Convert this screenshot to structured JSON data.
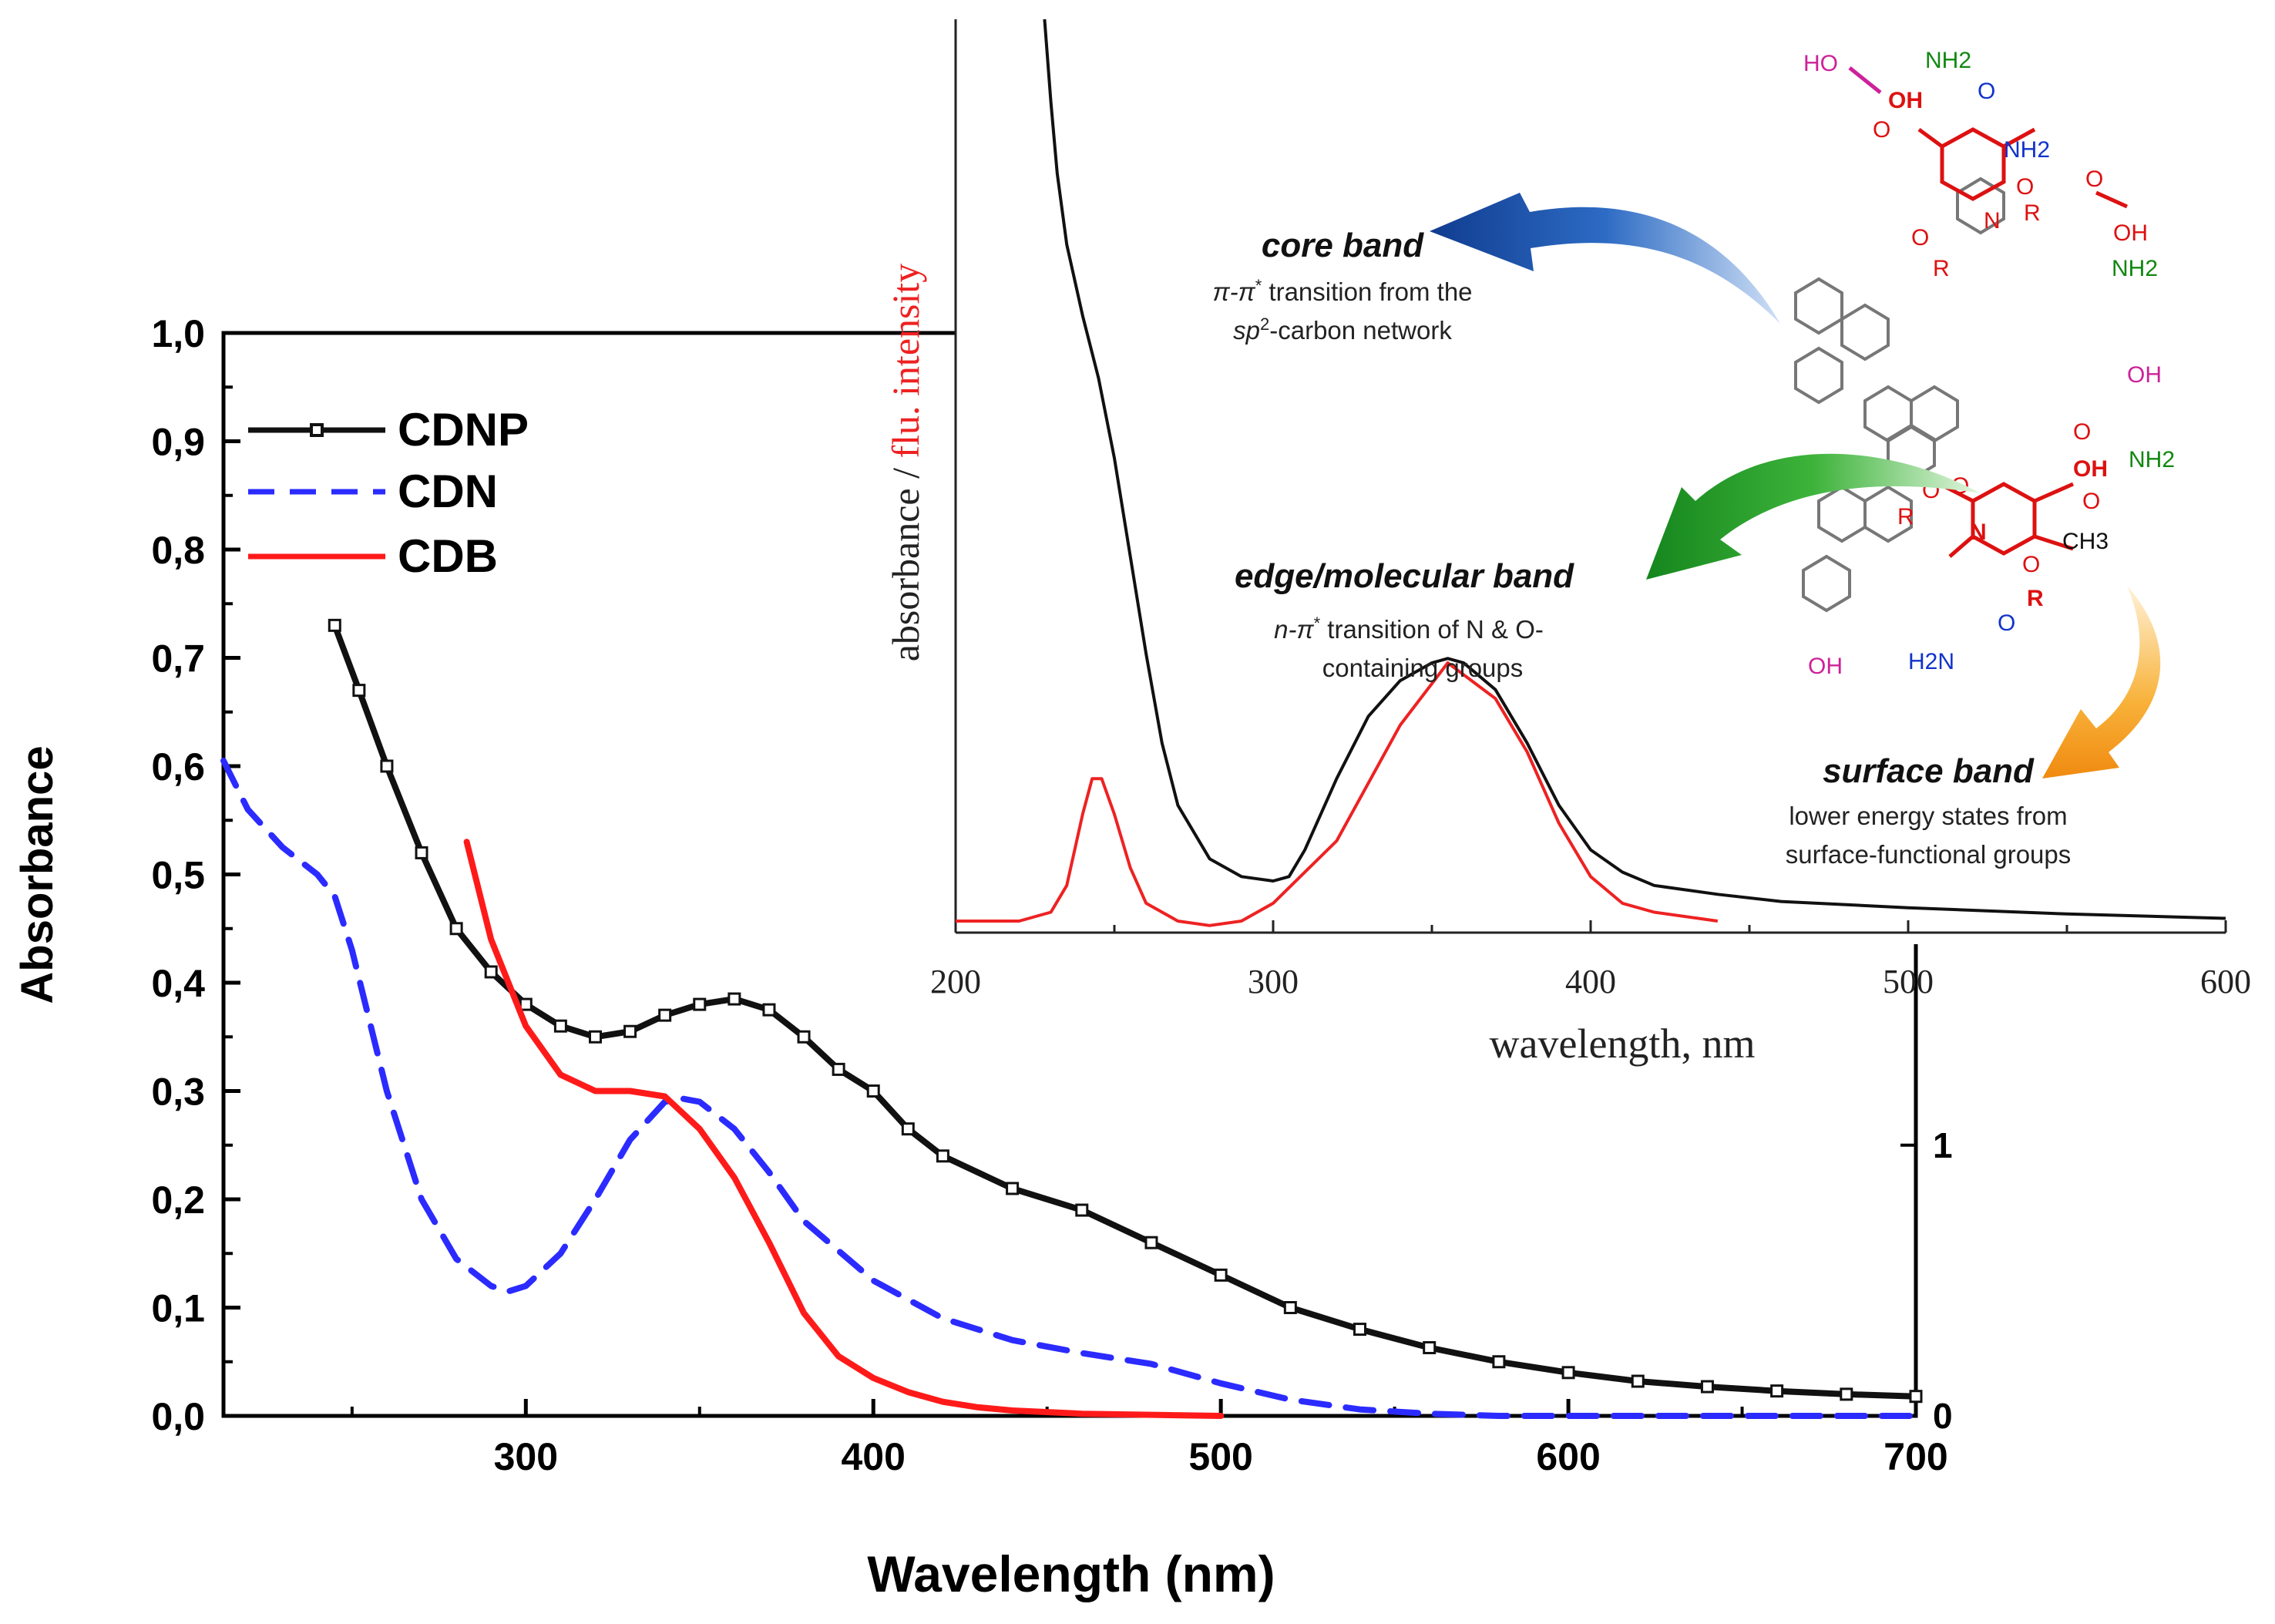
{
  "colors": {
    "cdnp": "#111111",
    "cdn": "#2b2bff",
    "cdb": "#ff1a1a",
    "inset_abs": "#111111",
    "inset_flu": "#ee2222",
    "core_arrow": "#1f4fa8",
    "edge_arrow": "#1f8f2a",
    "surface_arrow": "#f5a020",
    "glow": "#44dd33"
  },
  "chart_data": [
    {
      "type": "line",
      "title": "",
      "xlabel": "Wavelength (nm)",
      "ylabel": "Absorbance",
      "xlim": [
        213,
        700
      ],
      "ylim": [
        0.0,
        1.0
      ],
      "x_ticks": [
        "300",
        "400",
        "500",
        "600",
        "700"
      ],
      "x_tick_values": [
        300,
        400,
        500,
        600,
        700
      ],
      "y_ticks": [
        "0,0",
        "0,1",
        "0,2",
        "0,3",
        "0,4",
        "0,5",
        "0,6",
        "0,7",
        "0,8",
        "0,9",
        "1,0"
      ],
      "y_tick_values": [
        0.0,
        0.1,
        0.2,
        0.3,
        0.4,
        0.5,
        0.6,
        0.7,
        0.8,
        0.9,
        1.0
      ],
      "right_axis_ticks": [
        "0",
        "1"
      ],
      "right_axis_tick_values": [
        0.0,
        0.25
      ],
      "legend": [
        "CDNP",
        "CDN",
        "CDB"
      ],
      "legend_position": "top-left",
      "series": [
        {
          "name": "CDNP",
          "style": "solid-with-square-markers",
          "x": [
            245,
            252,
            260,
            270,
            280,
            290,
            300,
            310,
            320,
            330,
            340,
            350,
            360,
            370,
            380,
            390,
            400,
            410,
            420,
            440,
            460,
            480,
            500,
            520,
            540,
            560,
            580,
            600,
            620,
            640,
            660,
            680,
            700
          ],
          "y": [
            0.73,
            0.67,
            0.6,
            0.52,
            0.45,
            0.41,
            0.38,
            0.36,
            0.35,
            0.355,
            0.37,
            0.38,
            0.385,
            0.375,
            0.35,
            0.32,
            0.3,
            0.265,
            0.24,
            0.21,
            0.19,
            0.16,
            0.13,
            0.1,
            0.08,
            0.063,
            0.05,
            0.04,
            0.032,
            0.027,
            0.023,
            0.02,
            0.018
          ]
        },
        {
          "name": "CDN",
          "style": "dashed",
          "x": [
            213,
            220,
            230,
            240,
            245,
            250,
            260,
            270,
            280,
            290,
            295,
            300,
            310,
            320,
            330,
            340,
            345,
            350,
            360,
            370,
            380,
            400,
            420,
            440,
            460,
            480,
            500,
            520,
            540,
            560,
            580,
            600,
            650,
            700
          ],
          "y": [
            0.605,
            0.56,
            0.525,
            0.5,
            0.48,
            0.43,
            0.3,
            0.2,
            0.145,
            0.12,
            0.115,
            0.12,
            0.15,
            0.2,
            0.255,
            0.29,
            0.293,
            0.29,
            0.265,
            0.225,
            0.18,
            0.125,
            0.09,
            0.07,
            0.058,
            0.048,
            0.03,
            0.015,
            0.006,
            0.002,
            0.0,
            0.0,
            0.0,
            0.0
          ]
        },
        {
          "name": "CDB",
          "style": "solid",
          "x": [
            283,
            290,
            300,
            310,
            320,
            330,
            340,
            350,
            360,
            370,
            380,
            390,
            400,
            410,
            420,
            430,
            440,
            460,
            480,
            500
          ],
          "y": [
            0.53,
            0.44,
            0.36,
            0.315,
            0.3,
            0.3,
            0.295,
            0.265,
            0.22,
            0.16,
            0.095,
            0.055,
            0.035,
            0.022,
            0.013,
            0.008,
            0.005,
            0.002,
            0.001,
            0.0
          ]
        }
      ]
    },
    {
      "type": "line",
      "title": "",
      "xlabel": "wavelength, nm",
      "ylabel_parts": [
        "absorbance / ",
        "flu. intensity"
      ],
      "xlim": [
        200,
        600
      ],
      "ylim": [
        0,
        1
      ],
      "x_ticks": [
        "200",
        "300",
        "400",
        "500",
        "600"
      ],
      "x_tick_values": [
        200,
        300,
        400,
        500,
        600
      ],
      "series": [
        {
          "name": "absorbance",
          "x": [
            228,
            230,
            232,
            235,
            240,
            245,
            250,
            255,
            260,
            265,
            270,
            280,
            290,
            300,
            305,
            310,
            320,
            330,
            340,
            350,
            355,
            360,
            370,
            380,
            390,
            400,
            410,
            420,
            440,
            460,
            500,
            550,
            600
          ],
          "y": [
            1.04,
            0.92,
            0.84,
            0.76,
            0.68,
            0.61,
            0.52,
            0.41,
            0.3,
            0.2,
            0.13,
            0.07,
            0.05,
            0.045,
            0.05,
            0.08,
            0.16,
            0.23,
            0.27,
            0.29,
            0.295,
            0.29,
            0.26,
            0.2,
            0.13,
            0.08,
            0.055,
            0.04,
            0.03,
            0.022,
            0.015,
            0.008,
            0.003
          ]
        },
        {
          "name": "fluorescence",
          "x": [
            200,
            220,
            230,
            235,
            240,
            243,
            246,
            250,
            255,
            260,
            270,
            280,
            290,
            300,
            320,
            340,
            355,
            370,
            380,
            390,
            400,
            410,
            420,
            440
          ],
          "y": [
            0.0,
            0.0,
            0.01,
            0.04,
            0.12,
            0.16,
            0.16,
            0.12,
            0.06,
            0.02,
            0.0,
            -0.005,
            0.0,
            0.02,
            0.09,
            0.22,
            0.29,
            0.25,
            0.19,
            0.11,
            0.05,
            0.02,
            0.01,
            0.0
          ]
        }
      ]
    }
  ],
  "annotations": {
    "core_band": {
      "title": "core band",
      "line1_pre": "π-π",
      "line1_sup": "*",
      "line1_post": " transition from the",
      "line2_pre": "sp",
      "line2_sup": "2",
      "line2_post": "-carbon network"
    },
    "edge_band": {
      "title": "edge/molecular band",
      "line1_pre": "n-π",
      "line1_sup": "*",
      "line1_post": " transition of N & O-",
      "line2": "containing groups"
    },
    "surface_band": {
      "title": "surface band",
      "line1": "lower energy states from",
      "line2": "surface-functional groups"
    }
  },
  "structure_labels": {
    "ho_top": "HO",
    "nh2_top": "NH2",
    "oh_top": "OH",
    "o_top_blue": "O",
    "nh2_blue_top": "NH2",
    "o_red_1": "O",
    "o_red_2": "O",
    "r_1": "R",
    "o_red_3": "O",
    "oh_right": "OH",
    "o_r_left": "O",
    "r_left": "R",
    "n_top": "N",
    "nh2_right1": "NH2",
    "oh_mag_mid": "OH",
    "o_red_mid": "O",
    "oh_red_mid": "OH",
    "nh2_right2": "NH2",
    "r_mid": "R",
    "o_red_mid2": "O",
    "o_red_mid3": "O",
    "n_mid": "N",
    "o_ch3": "O",
    "ch3": "CH3",
    "o_red_low": "O",
    "r_low": "R",
    "o_blue_low": "O",
    "h2n": "H2N",
    "oh_bottom": "OH"
  }
}
